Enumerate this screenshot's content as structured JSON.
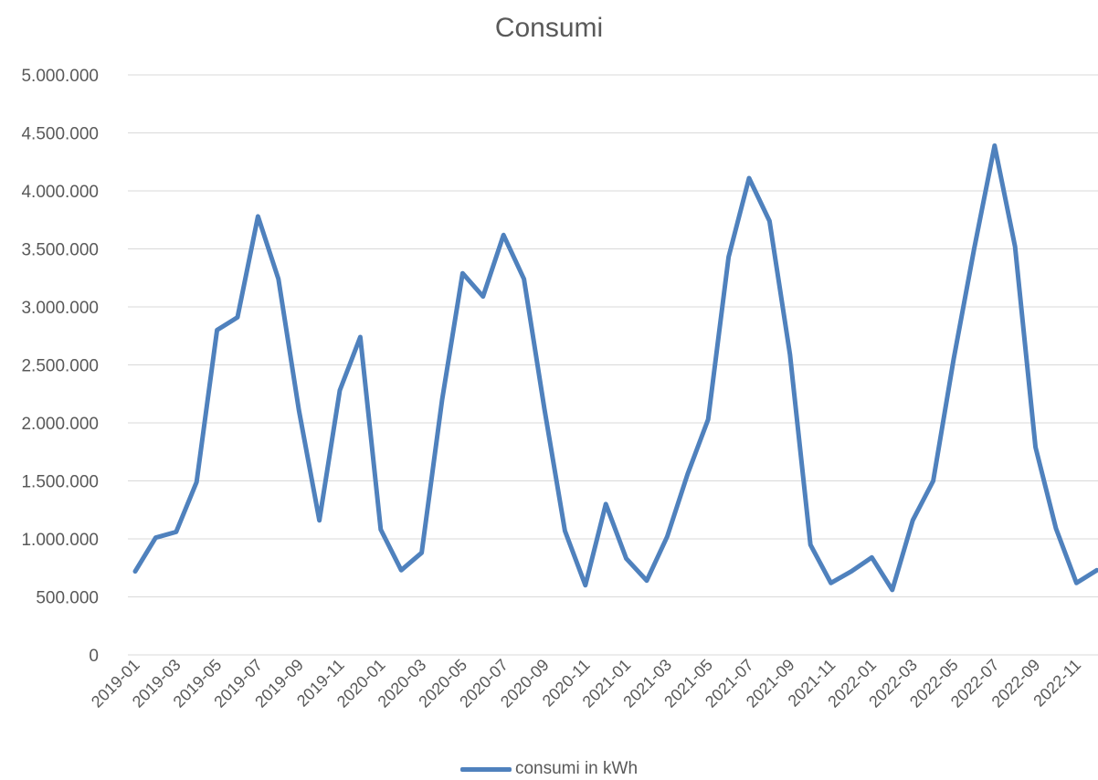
{
  "chart_data": {
    "type": "line",
    "title": "Consumi",
    "xlabel": "",
    "ylabel": "",
    "ylim": [
      0,
      5000000
    ],
    "y_ticks": [
      "0",
      "500.000",
      "1.000.000",
      "1.500.000",
      "2.000.000",
      "2.500.000",
      "3.000.000",
      "3.500.000",
      "4.000.000",
      "4.500.000",
      "5.000.000"
    ],
    "x": [
      "2019-01",
      "2019-02",
      "2019-03",
      "2019-04",
      "2019-05",
      "2019-06",
      "2019-07",
      "2019-08",
      "2019-09",
      "2019-10",
      "2019-11",
      "2019-12",
      "2020-01",
      "2020-02",
      "2020-03",
      "2020-04",
      "2020-05",
      "2020-06",
      "2020-07",
      "2020-08",
      "2020-09",
      "2020-10",
      "2020-11",
      "2020-12",
      "2021-01",
      "2021-02",
      "2021-03",
      "2021-04",
      "2021-05",
      "2021-06",
      "2021-07",
      "2021-08",
      "2021-09",
      "2021-10",
      "2021-11",
      "2021-12",
      "2022-01",
      "2022-02",
      "2022-03",
      "2022-04",
      "2022-05",
      "2022-06",
      "2022-07",
      "2022-08",
      "2022-09",
      "2022-10",
      "2022-11",
      "2022-12"
    ],
    "x_tick_labels": [
      "2019-01",
      "2019-03",
      "2019-05",
      "2019-07",
      "2019-09",
      "2019-11",
      "2020-01",
      "2020-03",
      "2020-05",
      "2020-07",
      "2020-09",
      "2020-11",
      "2021-01",
      "2021-03",
      "2021-05",
      "2021-07",
      "2021-09",
      "2021-11",
      "2022-01",
      "2022-03",
      "2022-05",
      "2022-07",
      "2022-09",
      "2022-11"
    ],
    "series": [
      {
        "name": "consumi in kWh",
        "color": "#4f81bd",
        "values": [
          720000,
          1010000,
          1060000,
          1490000,
          2800000,
          2910000,
          3780000,
          3240000,
          2110000,
          1160000,
          2280000,
          2740000,
          1080000,
          730000,
          880000,
          2200000,
          3290000,
          3090000,
          3620000,
          3240000,
          2120000,
          1070000,
          600000,
          1300000,
          830000,
          640000,
          1020000,
          1560000,
          2030000,
          3430000,
          4110000,
          3740000,
          2590000,
          950000,
          620000,
          720000,
          840000,
          560000,
          1160000,
          1500000,
          2550000,
          3500000,
          4390000,
          3520000,
          1790000,
          1090000,
          620000,
          730000
        ]
      }
    ],
    "grid": true,
    "legend_position": "bottom"
  }
}
